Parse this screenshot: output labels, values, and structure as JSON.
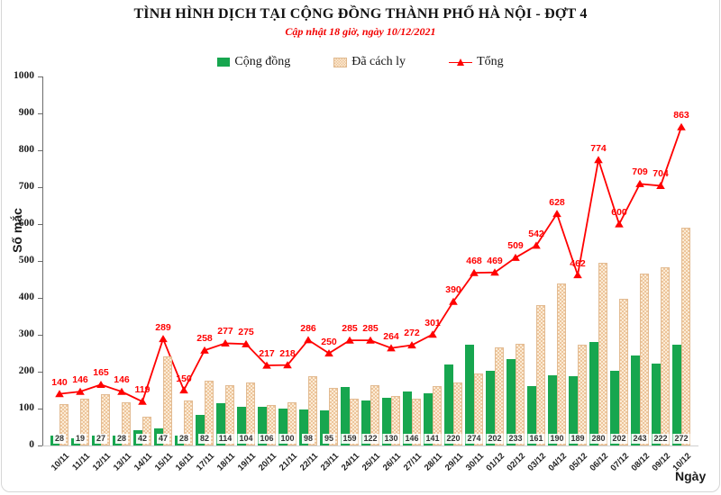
{
  "header": {
    "title": "TÌNH HÌNH DỊCH TẠI CỘNG ĐỒNG THÀNH PHỐ HÀ NỘI - ĐỢT 4",
    "subtitle": "Cập nhật 18 giờ, ngày 10/12/2021"
  },
  "legend": {
    "cong_dong": "Cộng đồng",
    "da_cach_ly": "Đã cách ly",
    "tong": "Tổng"
  },
  "axes": {
    "y_label": "Số mắc",
    "x_label": "Ngày",
    "y_ticks": [
      0,
      100,
      200,
      300,
      400,
      500,
      600,
      700,
      800,
      900,
      1000
    ]
  },
  "colors": {
    "community_bar": "#17A64F",
    "quarantine_bar_fill": "#FBEBD5",
    "quarantine_bar_pattern": "#EDC59B",
    "quarantine_bar_border": "#E2BB92",
    "total_line": "#FF0000",
    "subtitle_red": "#F20000"
  },
  "chart_data": {
    "type": "bar",
    "title": "TÌNH HÌNH DỊCH TẠI CỘNG ĐỒNG THÀNH PHỐ HÀ NỘI - ĐỢT 4",
    "subtitle": "Cập nhật 18 giờ, ngày 10/12/2021",
    "xlabel": "Ngày",
    "ylabel": "Số mắc",
    "ylim": [
      0,
      1000
    ],
    "grid": false,
    "legend_position": "top",
    "categories": [
      "10/11",
      "11/11",
      "12/11",
      "13/11",
      "14/11",
      "15/11",
      "16/11",
      "17/11",
      "18/11",
      "19/11",
      "20/11",
      "21/11",
      "22/11",
      "23/11",
      "24/11",
      "25/11",
      "26/11",
      "27/11",
      "28/11",
      "29/11",
      "30/11",
      "01/12",
      "02/12",
      "03/12",
      "04/12",
      "05/12",
      "06/12",
      "07/12",
      "08/12",
      "09/12",
      "10/12"
    ],
    "series": [
      {
        "name": "Cộng đồng",
        "kind": "bar",
        "color": "#17A64F",
        "labeled": true,
        "values": [
          28,
          19,
          27,
          28,
          42,
          47,
          28,
          82,
          114,
          104,
          106,
          100,
          98,
          95,
          159,
          122,
          130,
          146,
          141,
          220,
          274,
          202,
          233,
          161,
          190,
          189,
          280,
          202,
          243,
          222,
          272
        ]
      },
      {
        "name": "Đã cách ly",
        "kind": "bar",
        "color": "#FBEBD5",
        "labeled": false,
        "values": [
          112,
          127,
          138,
          118,
          77,
          242,
          122,
          176,
          163,
          171,
          111,
          118,
          188,
          155,
          126,
          163,
          134,
          126,
          160,
          170,
          194,
          267,
          276,
          381,
          438,
          273,
          494,
          398,
          466,
          482,
          591
        ]
      },
      {
        "name": "Tổng",
        "kind": "line",
        "color": "#FF0000",
        "labeled": true,
        "values": [
          140,
          146,
          165,
          146,
          119,
          289,
          150,
          258,
          277,
          275,
          217,
          218,
          286,
          250,
          285,
          285,
          264,
          272,
          301,
          390,
          468,
          469,
          509,
          542,
          628,
          462,
          774,
          600,
          709,
          704,
          863
        ]
      }
    ]
  }
}
